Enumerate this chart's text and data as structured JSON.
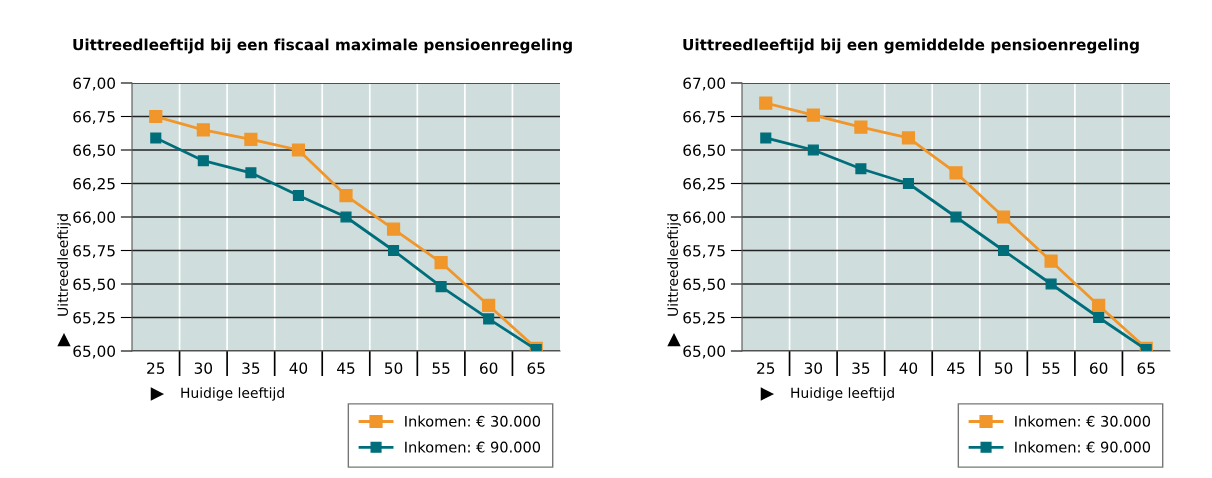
{
  "chart_data": [
    {
      "type": "line",
      "title": "Uittreedleeftijd bij een fiscaal maximale pensioenregeling",
      "xlabel": "Huidige leeftijd",
      "ylabel": "Uittreedleeftijd",
      "categories": [
        "25",
        "30",
        "35",
        "40",
        "45",
        "50",
        "55",
        "60",
        "65"
      ],
      "series": [
        {
          "name": "Inkomen: € 30.000",
          "color": "#f0962a",
          "values": [
            66.75,
            66.65,
            66.58,
            66.5,
            66.16,
            65.91,
            65.66,
            65.34,
            65.02
          ]
        },
        {
          "name": "Inkomen: € 90.000",
          "color": "#006e7a",
          "values": [
            66.59,
            66.42,
            66.33,
            66.16,
            66.0,
            65.75,
            65.48,
            65.24,
            65.01
          ]
        }
      ],
      "ylim": [
        65,
        67
      ],
      "yticks": [
        {
          "value": 65,
          "label": "65,00"
        },
        {
          "value": 65.25,
          "label": "65,25"
        },
        {
          "value": 65.5,
          "label": "65,50"
        },
        {
          "value": 65.75,
          "label": "65,75"
        },
        {
          "value": 66,
          "label": "66,00"
        },
        {
          "value": 66.25,
          "label": "66,25"
        },
        {
          "value": 66.5,
          "label": "66,50"
        },
        {
          "value": 66.75,
          "label": "66,75"
        },
        {
          "value": 67,
          "label": "67,00"
        }
      ],
      "grid": true,
      "legend": "bottom right",
      "marker": "square",
      "line_style": "solid"
    },
    {
      "type": "line",
      "title": "Uittreedleeftijd bij een gemiddelde pensioenregeling",
      "xlabel": "Huidige leeftijd",
      "ylabel": "Uittreedleeftijd",
      "categories": [
        "25",
        "30",
        "35",
        "40",
        "45",
        "50",
        "55",
        "60",
        "65"
      ],
      "series": [
        {
          "name": "Inkomen: € 30.000",
          "color": "#f0962a",
          "values": [
            66.85,
            66.76,
            66.67,
            66.59,
            66.33,
            66.0,
            65.67,
            65.34,
            65.02
          ]
        },
        {
          "name": "Inkomen: € 90.000",
          "color": "#006e7a",
          "values": [
            66.59,
            66.5,
            66.36,
            66.25,
            66.0,
            65.75,
            65.5,
            65.25,
            65.01
          ]
        }
      ],
      "ylim": [
        65,
        67
      ],
      "yticks": [
        {
          "value": 65,
          "label": "65,00"
        },
        {
          "value": 65.25,
          "label": "65,25"
        },
        {
          "value": 65.5,
          "label": "65,50"
        },
        {
          "value": 65.75,
          "label": "65,75"
        },
        {
          "value": 66,
          "label": "66,00"
        },
        {
          "value": 66.25,
          "label": "66,25"
        },
        {
          "value": 66.5,
          "label": "66,50"
        },
        {
          "value": 66.75,
          "label": "66,75"
        },
        {
          "value": 67,
          "label": "67,00"
        }
      ],
      "grid": true,
      "legend": "bottom right",
      "marker": "square",
      "line_style": "solid"
    }
  ]
}
